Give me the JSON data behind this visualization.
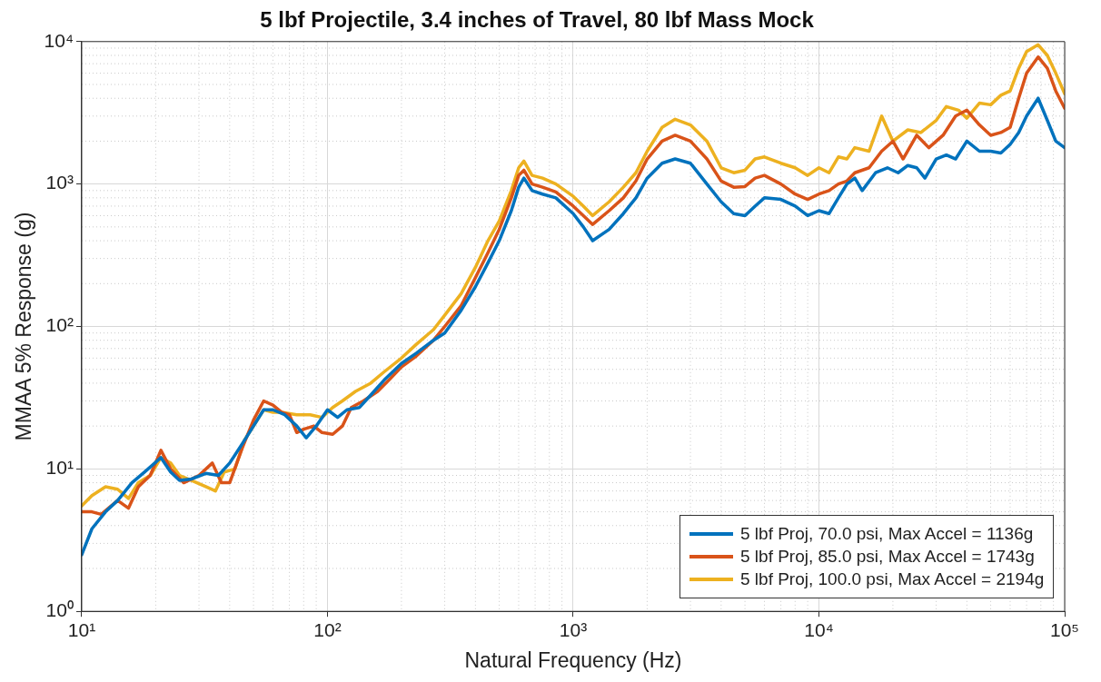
{
  "chart_data": {
    "type": "line",
    "title": "5 lbf Projectile, 3.4 inches of Travel, 80 lbf Mass Mock",
    "xlabel": "Natural Frequency (Hz)",
    "ylabel": "MMAA 5% Response (g)",
    "log": "xy",
    "grid": true,
    "legend": "bottom right",
    "marker": "none",
    "line_style": "solid",
    "xlim": [
      10,
      100000
    ],
    "ylim": [
      1,
      10000
    ],
    "xticks": [
      {
        "value": 10,
        "label": "10¹"
      },
      {
        "value": 100,
        "label": "10²"
      },
      {
        "value": 1000,
        "label": "10³"
      },
      {
        "value": 10000,
        "label": "10⁴"
      },
      {
        "value": 100000,
        "label": "10⁵"
      }
    ],
    "yticks": [
      {
        "value": 1,
        "label": "10⁰"
      },
      {
        "value": 10,
        "label": "10¹"
      },
      {
        "value": 100,
        "label": "10²"
      },
      {
        "value": 1000,
        "label": "10³"
      },
      {
        "value": 10000,
        "label": "10⁴"
      }
    ],
    "series": [
      {
        "name": "5 lbf Proj, 70.0 psi, Max Accel = 1136g",
        "color": "#0072bd",
        "x": [
          10,
          11,
          12.5,
          14,
          16,
          18,
          21,
          23,
          25,
          28,
          32,
          36,
          40,
          45,
          50,
          55,
          60,
          67,
          75,
          82,
          90,
          100,
          110,
          120,
          135,
          150,
          170,
          200,
          230,
          270,
          300,
          350,
          400,
          450,
          500,
          560,
          600,
          630,
          680,
          750,
          850,
          1000,
          1100,
          1200,
          1400,
          1600,
          1800,
          2000,
          2300,
          2600,
          3000,
          3500,
          4000,
          4500,
          5000,
          5500,
          6000,
          7000,
          8000,
          9000,
          10000,
          11000,
          12000,
          13000,
          14000,
          15000,
          17000,
          19000,
          21000,
          23000,
          25000,
          27000,
          30000,
          33000,
          36000,
          40000,
          45000,
          50000,
          55000,
          60000,
          65000,
          70000,
          78000,
          85000,
          92000,
          100000
        ],
        "values": [
          2.5,
          3.8,
          5,
          6,
          8,
          9.5,
          12,
          9.5,
          8.3,
          8.5,
          9.3,
          9,
          11,
          15,
          20,
          26,
          26,
          24,
          20,
          16.5,
          20,
          26,
          23,
          26,
          27,
          33,
          42,
          55,
          65,
          80,
          90,
          130,
          190,
          280,
          400,
          650,
          950,
          1100,
          900,
          850,
          800,
          620,
          500,
          400,
          480,
          620,
          800,
          1100,
          1400,
          1500,
          1400,
          1000,
          750,
          620,
          600,
          700,
          800,
          780,
          700,
          600,
          650,
          620,
          800,
          1000,
          1100,
          900,
          1200,
          1300,
          1200,
          1350,
          1300,
          1100,
          1500,
          1600,
          1500,
          2000,
          1700,
          1700,
          1650,
          1900,
          2300,
          3000,
          4000,
          2800,
          2000,
          1800
        ]
      },
      {
        "name": "5 lbf Proj, 85.0 psi, Max Accel = 1743g",
        "color": "#d95319",
        "x": [
          10,
          11,
          12,
          14,
          15.5,
          17,
          19,
          21,
          23,
          26,
          30,
          34,
          37,
          40,
          45,
          50,
          55,
          60,
          65,
          70,
          75,
          80,
          88,
          95,
          105,
          115,
          125,
          140,
          160,
          180,
          200,
          230,
          270,
          300,
          350,
          400,
          450,
          500,
          560,
          600,
          630,
          680,
          750,
          850,
          1000,
          1100,
          1200,
          1400,
          1600,
          1800,
          2000,
          2300,
          2600,
          3000,
          3500,
          4000,
          4500,
          5000,
          5500,
          6000,
          7000,
          8000,
          9000,
          10000,
          11000,
          12000,
          13000,
          14000,
          16000,
          18000,
          20000,
          22000,
          25000,
          28000,
          32000,
          36000,
          40000,
          45000,
          50000,
          55000,
          60000,
          65000,
          70000,
          78000,
          85000,
          92000,
          100000
        ],
        "values": [
          5,
          5,
          4.8,
          6,
          5.3,
          7.5,
          9,
          13.5,
          10,
          8,
          9,
          11,
          8,
          8,
          14,
          22,
          30,
          28,
          25,
          24,
          18,
          19,
          20,
          18,
          17.5,
          20,
          27,
          30,
          35,
          43,
          52,
          62,
          80,
          100,
          140,
          220,
          330,
          480,
          800,
          1150,
          1250,
          1000,
          950,
          880,
          700,
          600,
          520,
          650,
          800,
          1050,
          1500,
          2000,
          2200,
          2000,
          1500,
          1050,
          950,
          960,
          1100,
          1150,
          1000,
          850,
          780,
          850,
          900,
          1000,
          1050,
          1200,
          1300,
          1700,
          2000,
          1500,
          2200,
          1800,
          2200,
          3000,
          3300,
          2600,
          2200,
          2300,
          2500,
          4000,
          6000,
          7800,
          6500,
          4500,
          3400
        ]
      },
      {
        "name": "5 lbf Proj, 100.0 psi, Max Accel = 2194g",
        "color": "#edb120",
        "x": [
          10,
          11,
          12.5,
          14,
          15.5,
          17,
          19,
          21,
          23,
          25,
          28,
          32,
          35,
          38,
          42,
          46,
          50,
          55,
          60,
          65,
          75,
          85,
          95,
          105,
          115,
          130,
          150,
          170,
          200,
          230,
          270,
          300,
          350,
          400,
          450,
          500,
          560,
          600,
          630,
          680,
          750,
          850,
          1000,
          1100,
          1200,
          1400,
          1600,
          1800,
          2000,
          2300,
          2600,
          3000,
          3500,
          4000,
          4500,
          5000,
          5500,
          6000,
          7000,
          8000,
          9000,
          10000,
          11000,
          12000,
          13000,
          14000,
          16000,
          18000,
          20000,
          23000,
          26000,
          30000,
          33000,
          37000,
          40000,
          45000,
          50000,
          55000,
          60000,
          65000,
          70000,
          78000,
          85000,
          92000,
          100000
        ],
        "values": [
          5.5,
          6.5,
          7.5,
          7.2,
          6.2,
          8,
          9,
          12,
          11,
          9,
          8.3,
          7.5,
          7,
          9.5,
          10,
          16,
          20,
          26,
          25,
          25,
          24,
          24,
          23,
          27,
          30,
          35,
          40,
          48,
          60,
          75,
          95,
          120,
          170,
          260,
          400,
          550,
          900,
          1300,
          1450,
          1150,
          1100,
          1000,
          820,
          700,
          600,
          750,
          950,
          1200,
          1700,
          2500,
          2850,
          2600,
          2000,
          1300,
          1200,
          1250,
          1500,
          1550,
          1400,
          1300,
          1150,
          1300,
          1200,
          1550,
          1500,
          1800,
          1700,
          3000,
          2000,
          2400,
          2300,
          2800,
          3500,
          3300,
          2900,
          3700,
          3600,
          4200,
          4500,
          6500,
          8500,
          9500,
          8000,
          6000,
          4300
        ]
      }
    ]
  }
}
